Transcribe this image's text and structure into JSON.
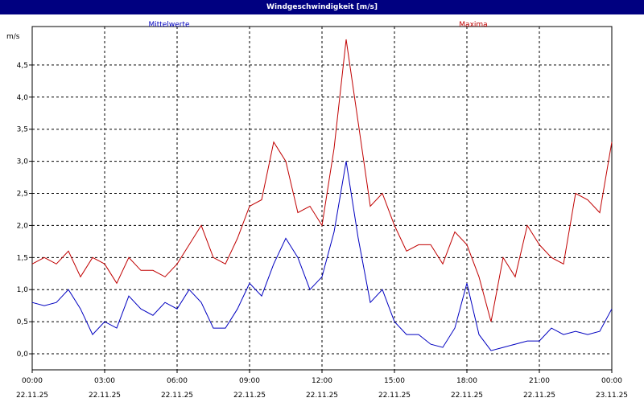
{
  "window": {
    "title": "Windgeschwindigkeit [m/s]"
  },
  "chart_data": {
    "type": "line",
    "ylabel": "m/s",
    "ylim": [
      -0.25,
      5.1
    ],
    "grid": true,
    "y_ticks": [
      "0,0",
      "0,5",
      "1,0",
      "1,5",
      "2,0",
      "2,5",
      "3,0",
      "3,5",
      "4,0",
      "4,5"
    ],
    "x_ticks": [
      {
        "time": "00:00",
        "date": "22.11.25"
      },
      {
        "time": "03:00",
        "date": "22.11.25"
      },
      {
        "time": "06:00",
        "date": "22.11.25"
      },
      {
        "time": "09:00",
        "date": "22.11.25"
      },
      {
        "time": "12:00",
        "date": "22.11.25"
      },
      {
        "time": "15:00",
        "date": "22.11.25"
      },
      {
        "time": "18:00",
        "date": "22.11.25"
      },
      {
        "time": "21:00",
        "date": "22.11.25"
      },
      {
        "time": "00:00",
        "date": "23.11.25"
      }
    ],
    "xlim_hours": [
      0,
      24
    ],
    "series": [
      {
        "name": "Mittelwerte",
        "color": "#0000c0",
        "x_hours": [
          0,
          0.5,
          1,
          1.5,
          2,
          2.5,
          3,
          3.5,
          4,
          4.5,
          5,
          5.5,
          6,
          6.5,
          7,
          7.5,
          8,
          8.5,
          9,
          9.5,
          10,
          10.5,
          11,
          11.5,
          12,
          12.5,
          13,
          13.5,
          14,
          14.5,
          15,
          15.5,
          16,
          16.5,
          17,
          17.5,
          18,
          18.5,
          19,
          19.5,
          20,
          20.5,
          21,
          21.5,
          22,
          22.5,
          23,
          23.5,
          24
        ],
        "values": [
          0.8,
          0.75,
          0.8,
          1.0,
          0.7,
          0.3,
          0.5,
          0.4,
          0.9,
          0.7,
          0.6,
          0.8,
          0.7,
          1.0,
          0.8,
          0.4,
          0.4,
          0.7,
          1.1,
          0.9,
          1.4,
          1.8,
          1.5,
          1.0,
          1.2,
          1.9,
          3.0,
          1.8,
          0.8,
          1.0,
          0.5,
          0.3,
          0.3,
          0.15,
          0.1,
          0.4,
          1.1,
          0.3,
          0.05,
          0.1,
          0.15,
          0.2,
          0.2,
          0.4,
          0.3,
          0.35,
          0.3,
          0.35,
          0.7
        ]
      },
      {
        "name": "Maxima",
        "color": "#c00000",
        "x_hours": [
          0,
          0.5,
          1,
          1.5,
          2,
          2.5,
          3,
          3.5,
          4,
          4.5,
          5,
          5.5,
          6,
          6.5,
          7,
          7.5,
          8,
          8.5,
          9,
          9.5,
          10,
          10.5,
          11,
          11.5,
          12,
          12.5,
          13,
          13.5,
          14,
          14.5,
          15,
          15.5,
          16,
          16.5,
          17,
          17.5,
          18,
          18.5,
          19,
          19.5,
          20,
          20.5,
          21,
          21.5,
          22,
          22.5,
          23,
          23.5,
          24
        ],
        "values": [
          1.4,
          1.5,
          1.4,
          1.6,
          1.2,
          1.5,
          1.4,
          1.1,
          1.5,
          1.3,
          1.3,
          1.2,
          1.4,
          1.7,
          2.0,
          1.5,
          1.4,
          1.8,
          2.3,
          2.4,
          3.3,
          3.0,
          2.2,
          2.3,
          2.0,
          3.2,
          4.9,
          3.6,
          2.3,
          2.5,
          2.0,
          1.6,
          1.7,
          1.7,
          1.4,
          1.9,
          1.7,
          1.2,
          0.5,
          1.5,
          1.2,
          2.0,
          1.7,
          1.5,
          1.4,
          2.5,
          2.4,
          2.2,
          3.3
        ]
      }
    ]
  }
}
